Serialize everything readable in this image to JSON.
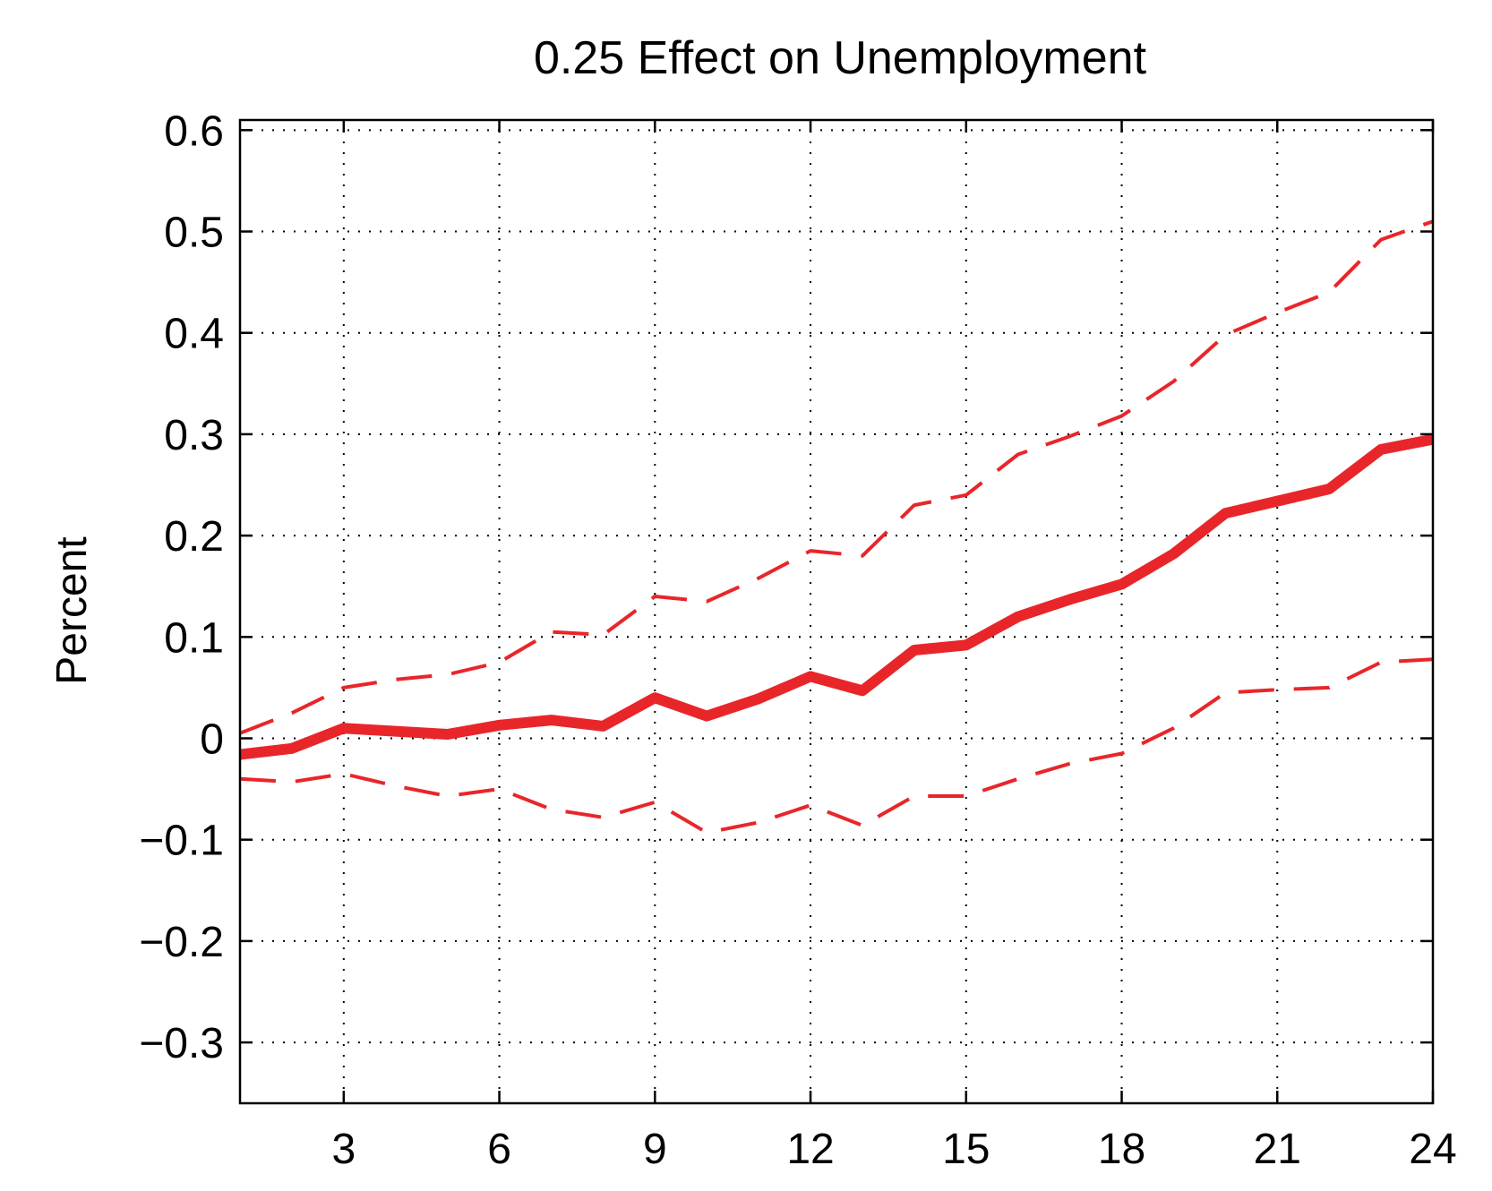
{
  "chart_data": {
    "type": "line",
    "title": "0.25 Effect on Unemployment",
    "xlabel": "",
    "ylabel": "Percent",
    "xlim": [
      1,
      24
    ],
    "ylim": [
      -0.36,
      0.61
    ],
    "xticks": [
      3,
      6,
      9,
      12,
      15,
      18,
      21,
      24
    ],
    "yticks": [
      0.6,
      0.5,
      0.4,
      0.3,
      0.2,
      0.1,
      0,
      -0.1,
      -0.2,
      -0.3
    ],
    "ytick_labels": [
      "0.6",
      "0.5",
      "0.4",
      "0.3",
      "0.2",
      "0.1",
      "0",
      "−0.1",
      "−0.2",
      "−0.3"
    ],
    "grid": true,
    "color": "#e8262a",
    "x": [
      1,
      2,
      3,
      4,
      5,
      6,
      7,
      8,
      9,
      10,
      11,
      12,
      13,
      14,
      15,
      16,
      17,
      18,
      19,
      20,
      21,
      22,
      23,
      24
    ],
    "series": [
      {
        "style": "solid",
        "values": [
          -0.016,
          -0.01,
          0.01,
          0.007,
          0.004,
          0.013,
          0.018,
          0.012,
          0.04,
          0.022,
          0.039,
          0.061,
          0.047,
          0.087,
          0.092,
          0.12,
          0.137,
          0.152,
          0.182,
          0.222,
          0.234,
          0.246,
          0.285,
          0.295
        ]
      },
      {
        "style": "dashed",
        "values": [
          0.005,
          0.025,
          0.05,
          0.058,
          0.063,
          0.075,
          0.105,
          0.102,
          0.14,
          0.135,
          0.158,
          0.185,
          0.18,
          0.23,
          0.24,
          0.28,
          0.298,
          0.318,
          0.352,
          0.398,
          0.42,
          0.44,
          0.492,
          0.51
        ]
      },
      {
        "style": "dashed",
        "values": [
          -0.04,
          -0.043,
          -0.035,
          -0.047,
          -0.057,
          -0.05,
          -0.07,
          -0.078,
          -0.063,
          -0.093,
          -0.083,
          -0.066,
          -0.086,
          -0.057,
          -0.057,
          -0.04,
          -0.025,
          -0.015,
          0.01,
          0.045,
          0.048,
          0.05,
          0.075,
          0.078
        ]
      }
    ]
  }
}
